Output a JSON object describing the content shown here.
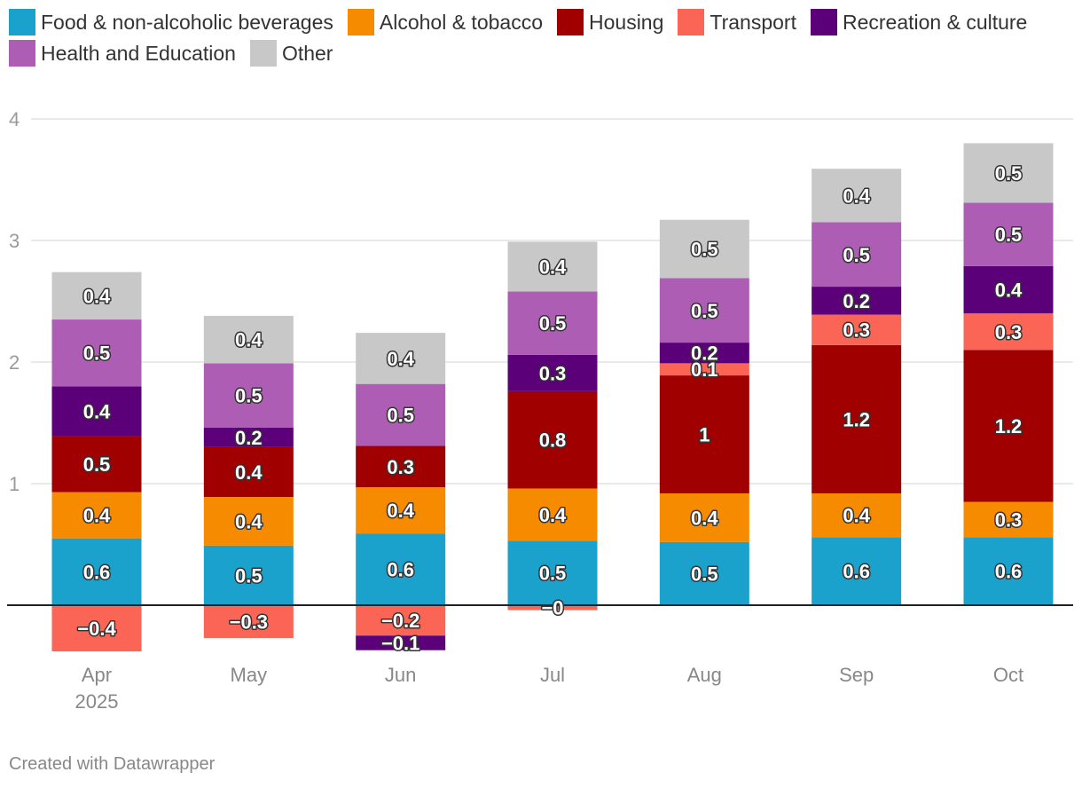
{
  "chart_data": {
    "type": "bar",
    "stacked": true,
    "categories": [
      "Apr 2025",
      "May",
      "Jun",
      "Jul",
      "Aug",
      "Sep",
      "Oct"
    ],
    "x_tick_labels": [
      [
        "Apr",
        "2025"
      ],
      [
        "May"
      ],
      [
        "Jun"
      ],
      [
        "Jul"
      ],
      [
        "Aug"
      ],
      [
        "Sep"
      ],
      [
        "Oct"
      ]
    ],
    "series": [
      {
        "name": "Food & non-alcoholic beverages",
        "color": "#1aa1cc",
        "values": [
          0.55,
          0.49,
          0.59,
          0.53,
          0.52,
          0.56,
          0.56
        ],
        "labels": [
          "0.6",
          "0.5",
          "0.6",
          "0.5",
          "0.5",
          "0.6",
          "0.6"
        ]
      },
      {
        "name": "Alcohol & tobacco",
        "color": "#f78b00",
        "values": [
          0.38,
          0.4,
          0.38,
          0.43,
          0.4,
          0.36,
          0.29
        ],
        "labels": [
          "0.4",
          "0.4",
          "0.4",
          "0.4",
          "0.4",
          "0.4",
          "0.3"
        ]
      },
      {
        "name": "Housing",
        "color": "#a00000",
        "values": [
          0.46,
          0.41,
          0.34,
          0.8,
          0.97,
          1.22,
          1.25
        ],
        "labels": [
          "0.5",
          "0.4",
          "0.3",
          "0.8",
          "1",
          "1.2",
          "1.2"
        ]
      },
      {
        "name": "Transport",
        "color": "#fa6556",
        "values": [
          -0.38,
          -0.27,
          -0.25,
          -0.04,
          0.1,
          0.25,
          0.3
        ],
        "labels": [
          "−0.4",
          "−0.3",
          "−0.2",
          "−0",
          "0.1",
          "0.3",
          "0.3"
        ]
      },
      {
        "name": "Recreation & culture",
        "color": "#5c007a",
        "values": [
          0.41,
          0.16,
          -0.12,
          0.3,
          0.17,
          0.23,
          0.39
        ],
        "labels": [
          "0.4",
          "0.2",
          "−0.1",
          "0.3",
          "0.2",
          "0.2",
          "0.4"
        ]
      },
      {
        "name": "Health and Education",
        "color": "#ad5db3",
        "values": [
          0.55,
          0.53,
          0.51,
          0.52,
          0.53,
          0.53,
          0.52
        ],
        "labels": [
          "0.5",
          "0.5",
          "0.5",
          "0.5",
          "0.5",
          "0.5",
          "0.5"
        ]
      },
      {
        "name": "Other",
        "color": "#c8c8c8",
        "values": [
          0.39,
          0.39,
          0.42,
          0.41,
          0.48,
          0.44,
          0.49
        ],
        "labels": [
          "0.4",
          "0.4",
          "0.4",
          "0.4",
          "0.5",
          "0.4",
          "0.5"
        ]
      }
    ],
    "y_ticks": [
      1,
      2,
      3,
      4
    ],
    "y_tick_labels": [
      "1",
      "2",
      "3",
      "4"
    ],
    "ylim": [
      -0.4,
      4
    ],
    "grid": true,
    "legend_position": "top",
    "title": "",
    "xlabel": "",
    "ylabel": ""
  },
  "footer": {
    "credit": "Created with Datawrapper"
  }
}
